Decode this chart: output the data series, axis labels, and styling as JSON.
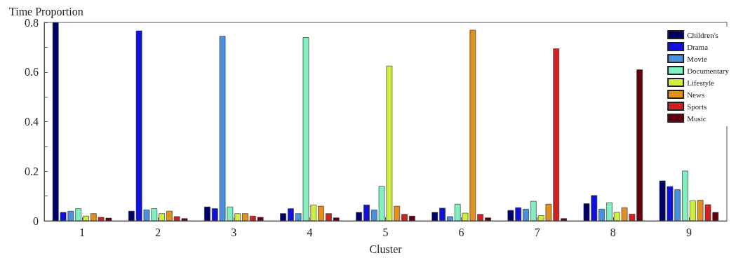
{
  "chart_data": {
    "type": "bar",
    "ylabel": "Time Proportion",
    "xlabel": "Cluster",
    "categories": [
      "1",
      "2",
      "3",
      "4",
      "5",
      "6",
      "7",
      "8",
      "9"
    ],
    "series": [
      {
        "name": "Children's",
        "color": "#000066",
        "values": [
          0.8,
          0.04,
          0.057,
          0.03,
          0.035,
          0.035,
          0.043,
          0.07,
          0.162
        ]
      },
      {
        "name": "Drama",
        "color": "#1010e0",
        "values": [
          0.035,
          0.767,
          0.05,
          0.05,
          0.065,
          0.052,
          0.054,
          0.103,
          0.139
        ]
      },
      {
        "name": "Movie",
        "color": "#4a90e0",
        "values": [
          0.04,
          0.045,
          0.745,
          0.03,
          0.045,
          0.018,
          0.048,
          0.048,
          0.127
        ]
      },
      {
        "name": "Documentary",
        "color": "#80f0c0",
        "values": [
          0.05,
          0.05,
          0.057,
          0.74,
          0.14,
          0.068,
          0.08,
          0.074,
          0.202
        ]
      },
      {
        "name": "Lifestyle",
        "color": "#d0f040",
        "values": [
          0.02,
          0.03,
          0.03,
          0.065,
          0.625,
          0.032,
          0.022,
          0.035,
          0.082
        ]
      },
      {
        "name": "News",
        "color": "#e09020",
        "values": [
          0.03,
          0.04,
          0.03,
          0.06,
          0.06,
          0.77,
          0.068,
          0.054,
          0.084
        ]
      },
      {
        "name": "Sports",
        "color": "#d02020",
        "values": [
          0.015,
          0.018,
          0.02,
          0.03,
          0.027,
          0.027,
          0.695,
          0.028,
          0.066
        ]
      },
      {
        "name": "Music",
        "color": "#600010",
        "values": [
          0.012,
          0.01,
          0.015,
          0.013,
          0.02,
          0.013,
          0.01,
          0.61,
          0.035
        ]
      }
    ],
    "ylim": [
      0,
      0.8
    ],
    "yticks": [
      0,
      {
        "value": 0.1,
        "label": null
      },
      0.2,
      {
        "value": 0.3,
        "label": null
      },
      0.4,
      {
        "value": 0.5,
        "label": null
      },
      0.6,
      {
        "value": 0.7,
        "label": null
      },
      0.8
    ],
    "grid": false,
    "legend": "top right"
  }
}
